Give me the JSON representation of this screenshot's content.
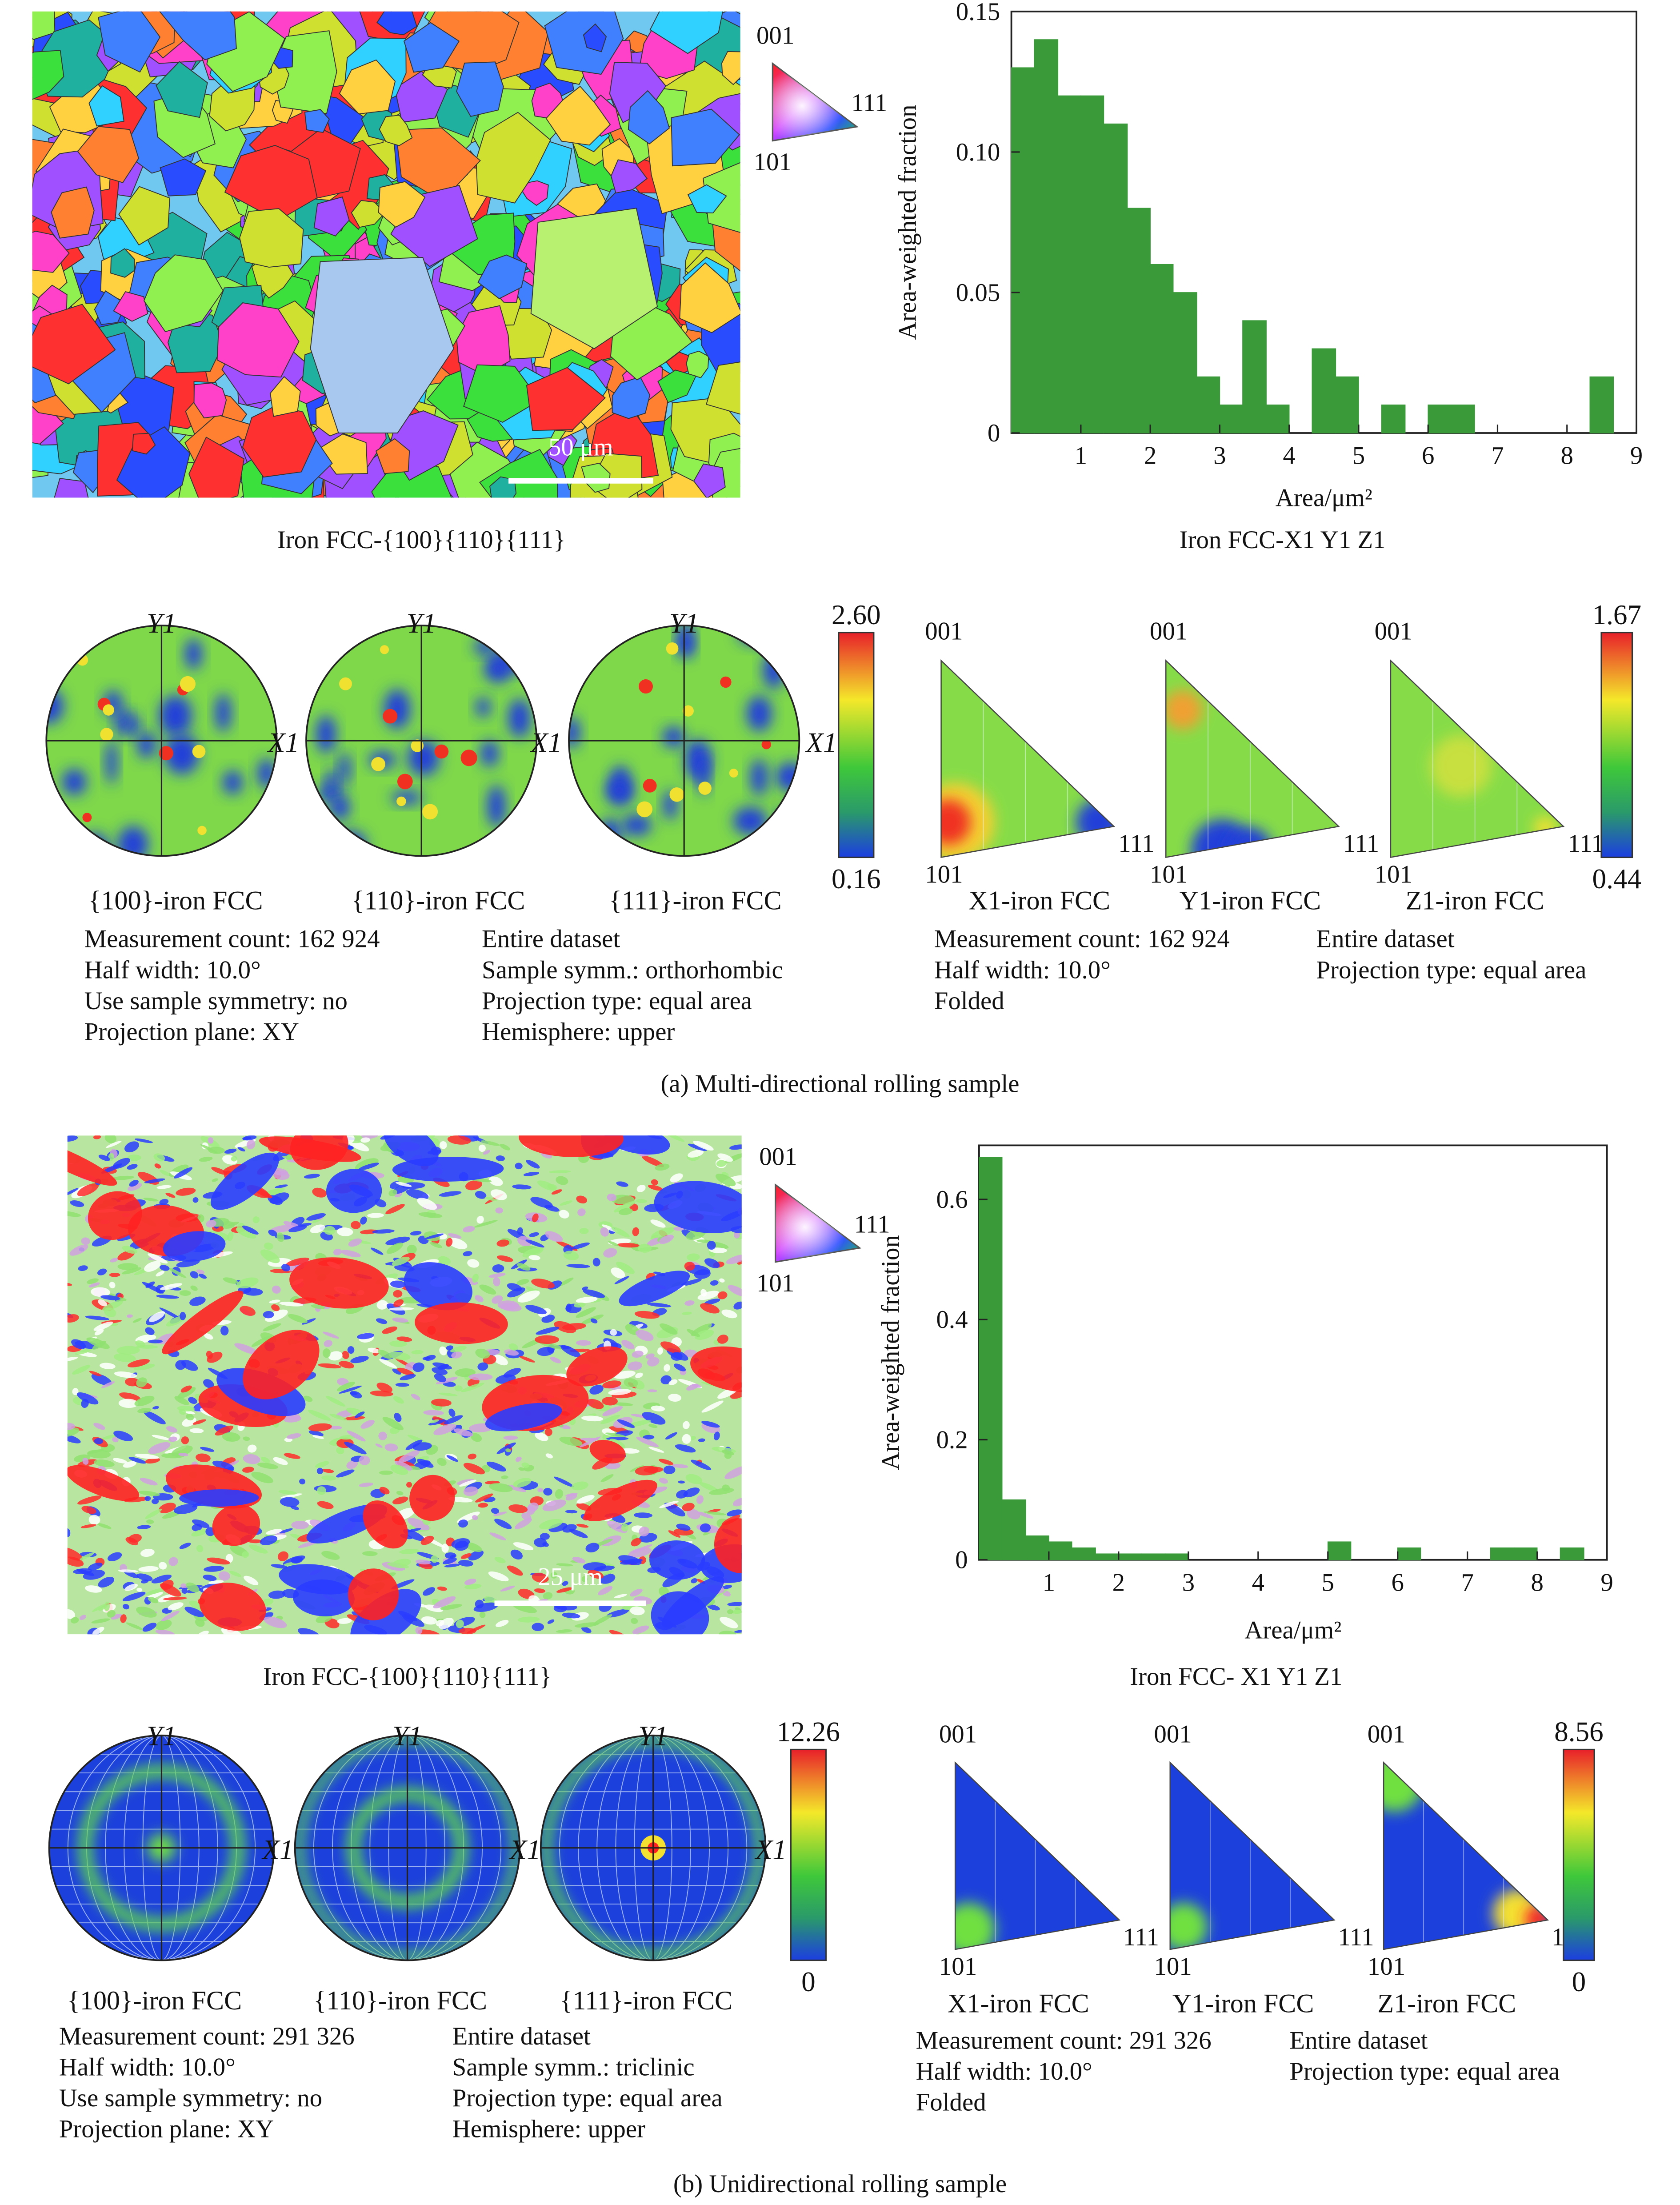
{
  "chart_data": [
    {
      "type": "histogram",
      "xlabel": "Area/μm²",
      "ylabel": "Area-weighted fraction",
      "color": "#3a9a3a",
      "bins": [
        0,
        0.33,
        0.67,
        1,
        1.33,
        1.67,
        2,
        2.33,
        2.67,
        3,
        3.33,
        3.67,
        4,
        4.33,
        4.67,
        5,
        5.33,
        5.67,
        6,
        6.33,
        6.67,
        7,
        7.33,
        7.67,
        8,
        8.33,
        8.67,
        9
      ],
      "values": [
        0.13,
        0.14,
        0.12,
        0.12,
        0.11,
        0.08,
        0.06,
        0.05,
        0.02,
        0.01,
        0.04,
        0.01,
        0,
        0.03,
        0.02,
        0,
        0.01,
        0,
        0.01,
        0.01,
        0,
        0,
        0,
        0,
        0,
        0.02,
        0
      ],
      "xlim": [
        0,
        9
      ],
      "xticks": [
        1,
        2,
        3,
        4,
        5,
        6,
        7,
        8,
        9
      ],
      "ylim": [
        0,
        0.15
      ],
      "yticks": [
        0,
        0.05,
        {
          "value": 0.1,
          "label": "0.10"
        },
        0.15
      ]
    },
    {
      "type": "histogram",
      "xlabel": "Area/μm²",
      "ylabel": "Area-weighted fraction",
      "color": "#3a9a3a",
      "bins": [
        0,
        0.33,
        0.67,
        1,
        1.33,
        1.67,
        2,
        2.33,
        2.67,
        3,
        3.33,
        3.67,
        4,
        4.33,
        4.67,
        5,
        5.33,
        5.67,
        6,
        6.33,
        6.67,
        7,
        7.33,
        7.67,
        8,
        8.33,
        8.67,
        9
      ],
      "values": [
        0.67,
        0.1,
        0.04,
        0.03,
        0.02,
        0.01,
        0.01,
        0.01,
        0.01,
        0,
        0,
        0,
        0,
        0,
        0,
        0.03,
        0,
        0,
        0.02,
        0,
        0,
        0,
        0.02,
        0.02,
        0,
        0.02,
        0
      ],
      "xlim": [
        0,
        9
      ],
      "xticks": [
        1,
        2,
        3,
        4,
        5,
        6,
        7,
        8,
        9
      ],
      "ylim": [
        0,
        0.69
      ],
      "yticks": [
        0,
        0.2,
        0.4,
        0.6
      ]
    }
  ],
  "panels": [
    {
      "caption": "(a) Multi-directional rolling sample",
      "map_caption": "Iron FCC-{100}{110}{111}",
      "scale_bar": "50 μm",
      "key_labels": [
        "001",
        "111",
        "101"
      ],
      "hist_caption": "Iron FCC-X1 Y1 Z1",
      "pole_figures": {
        "axis_y": "Y1",
        "axis_x": "X1",
        "titles": [
          "{100}-iron FCC",
          "{110}-iron FCC",
          "{111}-iron FCC"
        ],
        "colorbar": [
          "2.60",
          "0.16"
        ],
        "info_left": [
          "Measurement count: 162 924",
          "Half width: 10.0°",
          "Use sample symmetry: no",
          "Projection plane: XY"
        ],
        "info_right": [
          "Entire dataset",
          "Sample symm.: orthorhombic",
          "Projection type: equal area",
          "Hemisphere: upper"
        ]
      },
      "inverse_pole_figures": {
        "titles": [
          "X1-iron FCC",
          "Y1-iron FCC",
          "Z1-iron FCC"
        ],
        "colorbar": [
          "1.67",
          "0.44"
        ],
        "info_left": [
          "Measurement count: 162 924",
          "Half width: 10.0°",
          "Folded"
        ],
        "info_right": [
          "Entire dataset",
          "Projection type: equal area"
        ]
      }
    },
    {
      "caption": "(b) Unidirectional rolling sample",
      "map_caption": "Iron FCC-{100}{110}{111}",
      "scale_bar": "25 μm",
      "key_labels": [
        "001",
        "111",
        "101"
      ],
      "hist_caption": "Iron FCC- X1 Y1 Z1",
      "pole_figures": {
        "axis_y": "Y1",
        "axis_x": "X1",
        "titles": [
          "{100}-iron FCC",
          "{110}-iron FCC",
          "{111}-iron FCC"
        ],
        "colorbar": [
          "12.26",
          "0"
        ],
        "info_left": [
          "Measurement count: 291 326",
          "Half width: 10.0°",
          "Use sample symmetry: no",
          "Projection plane: XY"
        ],
        "info_right": [
          "Entire dataset",
          "Sample symm.: triclinic",
          "Projection type: equal area",
          "Hemisphere: upper"
        ]
      },
      "inverse_pole_figures": {
        "titles": [
          "X1-iron FCC",
          "Y1-iron FCC",
          "Z1-iron FCC"
        ],
        "colorbar": [
          "8.56",
          "0"
        ],
        "info_left": [
          "Measurement count: 291 326",
          "Half width: 10.0°",
          "Folded"
        ],
        "info_right": [
          "Entire dataset",
          "Projection type: equal area"
        ]
      }
    }
  ]
}
